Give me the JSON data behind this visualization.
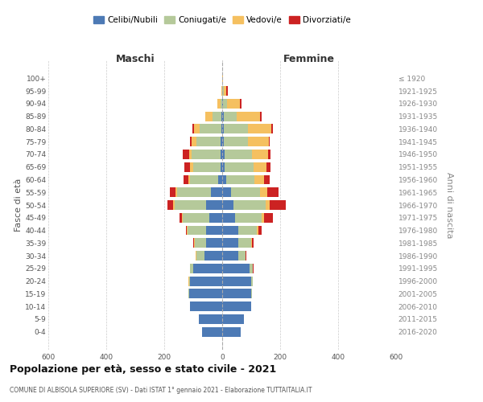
{
  "age_groups": [
    "0-4",
    "5-9",
    "10-14",
    "15-19",
    "20-24",
    "25-29",
    "30-34",
    "35-39",
    "40-44",
    "45-49",
    "50-54",
    "55-59",
    "60-64",
    "65-69",
    "70-74",
    "75-79",
    "80-84",
    "85-89",
    "90-94",
    "95-99",
    "100+"
  ],
  "birth_years": [
    "2016-2020",
    "2011-2015",
    "2006-2010",
    "2001-2005",
    "1996-2000",
    "1991-1995",
    "1986-1990",
    "1981-1985",
    "1976-1980",
    "1971-1975",
    "1966-1970",
    "1961-1965",
    "1956-1960",
    "1951-1955",
    "1946-1950",
    "1941-1945",
    "1936-1940",
    "1931-1935",
    "1926-1930",
    "1921-1925",
    "≤ 1920"
  ],
  "colors": {
    "celibi": "#4d7ab5",
    "coniugati": "#b5c99a",
    "vedovi": "#f5c060",
    "divorziati": "#cc2222"
  },
  "male": {
    "celibi": [
      70,
      80,
      110,
      115,
      110,
      100,
      60,
      55,
      55,
      45,
      55,
      40,
      15,
      5,
      5,
      5,
      3,
      2,
      1,
      0,
      0
    ],
    "coniugati": [
      0,
      0,
      0,
      2,
      5,
      10,
      30,
      40,
      65,
      90,
      110,
      115,
      95,
      95,
      100,
      85,
      75,
      30,
      5,
      0,
      0
    ],
    "vedovi": [
      0,
      0,
      0,
      0,
      1,
      1,
      1,
      1,
      1,
      3,
      4,
      5,
      8,
      10,
      10,
      15,
      20,
      25,
      10,
      2,
      0
    ],
    "divorziati": [
      0,
      0,
      0,
      0,
      1,
      1,
      2,
      5,
      5,
      10,
      20,
      20,
      15,
      20,
      20,
      5,
      5,
      2,
      0,
      0,
      0
    ]
  },
  "female": {
    "celibi": [
      65,
      75,
      100,
      100,
      100,
      95,
      55,
      55,
      55,
      45,
      40,
      30,
      15,
      8,
      8,
      5,
      5,
      5,
      2,
      0,
      0
    ],
    "coniugati": [
      0,
      0,
      0,
      2,
      5,
      10,
      25,
      45,
      65,
      90,
      110,
      100,
      95,
      100,
      95,
      85,
      85,
      45,
      15,
      5,
      0
    ],
    "vedovi": [
      0,
      0,
      0,
      0,
      0,
      1,
      1,
      3,
      5,
      10,
      15,
      25,
      35,
      45,
      55,
      70,
      80,
      80,
      45,
      10,
      2
    ],
    "divorziati": [
      0,
      0,
      0,
      0,
      1,
      1,
      2,
      5,
      10,
      30,
      55,
      40,
      20,
      15,
      10,
      5,
      5,
      5,
      5,
      5,
      0
    ]
  },
  "title": "Popolazione per età, sesso e stato civile - 2021",
  "subtitle": "COMUNE DI ALBISOLA SUPERIORE (SV) - Dati ISTAT 1° gennaio 2021 - Elaborazione TUTTAITALIA.IT",
  "xlabel_left": "Maschi",
  "xlabel_right": "Femmine",
  "ylabel_left": "Fasce di età",
  "ylabel_right": "Anni di nascita",
  "xlim": 600,
  "legend_labels": [
    "Celibi/Nubili",
    "Coniugati/e",
    "Vedovi/e",
    "Divorziati/e"
  ],
  "background_color": "#ffffff",
  "grid_color": "#cccccc",
  "bar_height": 0.75
}
